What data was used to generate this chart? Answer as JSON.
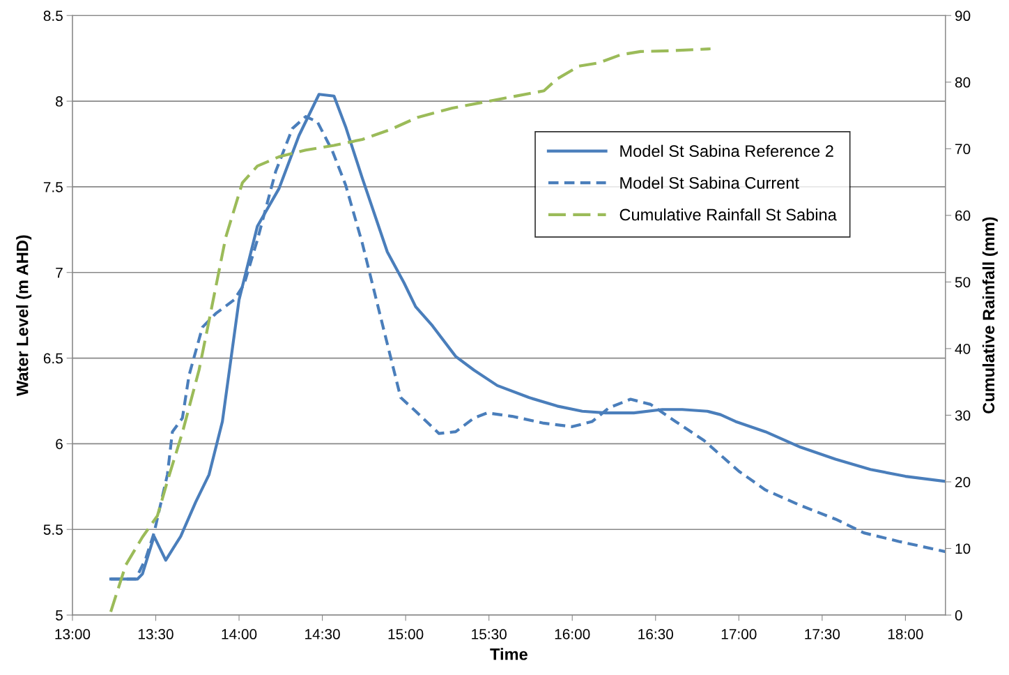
{
  "chart_data": {
    "type": "line",
    "xlabel": "Time",
    "ylabel": "Water Level (m AHD)",
    "y2label": "Cumulative Rainfall (mm)",
    "xlim": [
      13,
      18.24
    ],
    "xticks": [
      {
        "value": 13,
        "label": "13:00"
      },
      {
        "value": 13.5,
        "label": "13:30"
      },
      {
        "value": 14,
        "label": "14:00"
      },
      {
        "value": 14.5,
        "label": "14:30"
      },
      {
        "value": 15,
        "label": "15:00"
      },
      {
        "value": 15.5,
        "label": "15:30"
      },
      {
        "value": 16,
        "label": "16:00"
      },
      {
        "value": 16.5,
        "label": "16:30"
      },
      {
        "value": 17,
        "label": "17:00"
      },
      {
        "value": 17.5,
        "label": "17:30"
      },
      {
        "value": 18,
        "label": "18:00"
      }
    ],
    "ylim": [
      5,
      8.5
    ],
    "yticks": [
      5,
      5.5,
      6,
      6.5,
      7,
      7.5,
      8,
      8.5
    ],
    "y2lim": [
      0,
      90
    ],
    "y2ticks": [
      0,
      10,
      20,
      30,
      40,
      50,
      60,
      70,
      80,
      90
    ],
    "grid": "y",
    "legend": "top right",
    "marker": "none",
    "series": [
      {
        "name": "Model St Sabina Reference 2",
        "color": "#4a7ebb",
        "line_style": "solid",
        "x": [
          13.23,
          13.39,
          13.42,
          13.49,
          13.56,
          13.65,
          13.74,
          13.82,
          13.9,
          14.0,
          14.11,
          14.24,
          14.36,
          14.48,
          14.57,
          14.64,
          14.74,
          14.89,
          14.99,
          15.06,
          15.16,
          15.3,
          15.41,
          15.55,
          15.74,
          15.91,
          16.06,
          16.2,
          16.37,
          16.54,
          16.66,
          16.81,
          16.89,
          16.98,
          17.16,
          17.37,
          17.58,
          17.79,
          18.0,
          18.24
        ],
        "values": [
          5.21,
          5.21,
          5.24,
          5.46,
          5.32,
          5.46,
          5.66,
          5.82,
          6.13,
          6.84,
          7.27,
          7.49,
          7.8,
          8.04,
          8.03,
          7.85,
          7.55,
          7.12,
          6.94,
          6.8,
          6.69,
          6.51,
          6.43,
          6.34,
          6.27,
          6.22,
          6.19,
          6.18,
          6.18,
          6.2,
          6.2,
          6.19,
          6.17,
          6.13,
          6.07,
          5.98,
          5.91,
          5.85,
          5.81,
          5.78
        ]
      },
      {
        "name": "Model St Sabina Current",
        "color": "#4a7ebb",
        "line_style": "dashed",
        "x": [
          13.23,
          13.38,
          13.44,
          13.49,
          13.57,
          13.6,
          13.66,
          13.7,
          13.78,
          13.86,
          13.97,
          14.03,
          14.11,
          14.22,
          14.32,
          14.4,
          14.47,
          14.56,
          14.64,
          14.74,
          14.86,
          14.97,
          15.06,
          15.2,
          15.3,
          15.41,
          15.49,
          15.64,
          15.83,
          16.0,
          16.12,
          16.22,
          16.35,
          16.47,
          16.62,
          16.79,
          17.0,
          17.16,
          17.37,
          17.58,
          17.75,
          17.96,
          18.24
        ],
        "values": [
          5.21,
          5.21,
          5.33,
          5.48,
          5.82,
          6.07,
          6.15,
          6.4,
          6.68,
          6.76,
          6.84,
          6.93,
          7.19,
          7.59,
          7.84,
          7.91,
          7.88,
          7.71,
          7.51,
          7.17,
          6.7,
          6.27,
          6.19,
          6.06,
          6.07,
          6.15,
          6.18,
          6.16,
          6.12,
          6.1,
          6.13,
          6.21,
          6.26,
          6.23,
          6.13,
          6.02,
          5.84,
          5.73,
          5.64,
          5.56,
          5.48,
          5.43,
          5.37
        ]
      },
      {
        "name": "Cumulative Rainfall St Sabina",
        "color": "#9bbb59",
        "line_style": "dashed",
        "axis": "y2",
        "x": [
          13.23,
          13.32,
          13.42,
          13.51,
          13.57,
          13.66,
          13.76,
          13.82,
          13.92,
          14.02,
          14.11,
          14.24,
          14.4,
          14.57,
          14.74,
          14.91,
          15.07,
          15.28,
          15.49,
          15.66,
          15.83,
          15.91,
          16.04,
          16.16,
          16.29,
          16.41,
          16.58,
          16.75,
          16.83
        ],
        "values": [
          0.5,
          7.5,
          11.7,
          14.9,
          20.1,
          27.4,
          36.8,
          44.2,
          56.7,
          64.9,
          67.4,
          68.8,
          69.8,
          70.5,
          71.4,
          72.9,
          74.7,
          76.1,
          77.1,
          77.9,
          78.7,
          80.5,
          82.4,
          82.9,
          84.1,
          84.6,
          84.7,
          84.9,
          85.0
        ]
      }
    ]
  }
}
